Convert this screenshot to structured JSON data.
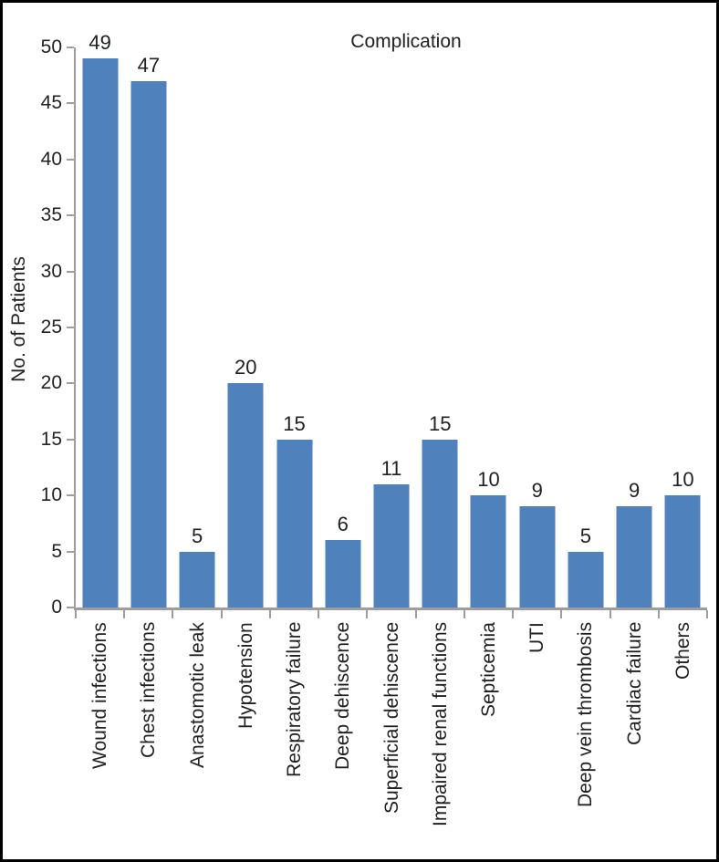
{
  "chart_data": {
    "type": "bar",
    "title": "Complication",
    "ylabel": "No. of Patients",
    "xlabel": "",
    "categories": [
      "Wound infections",
      "Chest infections",
      "Anastomotic leak",
      "Hypotension",
      "Respiratory failure",
      "Deep dehiscence",
      "Superficial dehiscence",
      "Impaired renal functions",
      "Septicemia",
      "UTI",
      "Deep vein thrombosis",
      "Cardiac failure",
      "Others"
    ],
    "values": [
      49,
      47,
      5,
      20,
      15,
      6,
      11,
      15,
      10,
      9,
      5,
      9,
      10
    ],
    "ylim": [
      0,
      50
    ],
    "ytick_step": 5,
    "yticks": [
      0,
      5,
      10,
      15,
      20,
      25,
      30,
      35,
      40,
      45,
      50
    ],
    "grid": false,
    "legend_position": "none",
    "bar_labels_shown": true,
    "bar_color": "#4f81bd",
    "axis_color": "#9d9d9d",
    "text_color": "#212121",
    "frame_color": "#000000"
  }
}
